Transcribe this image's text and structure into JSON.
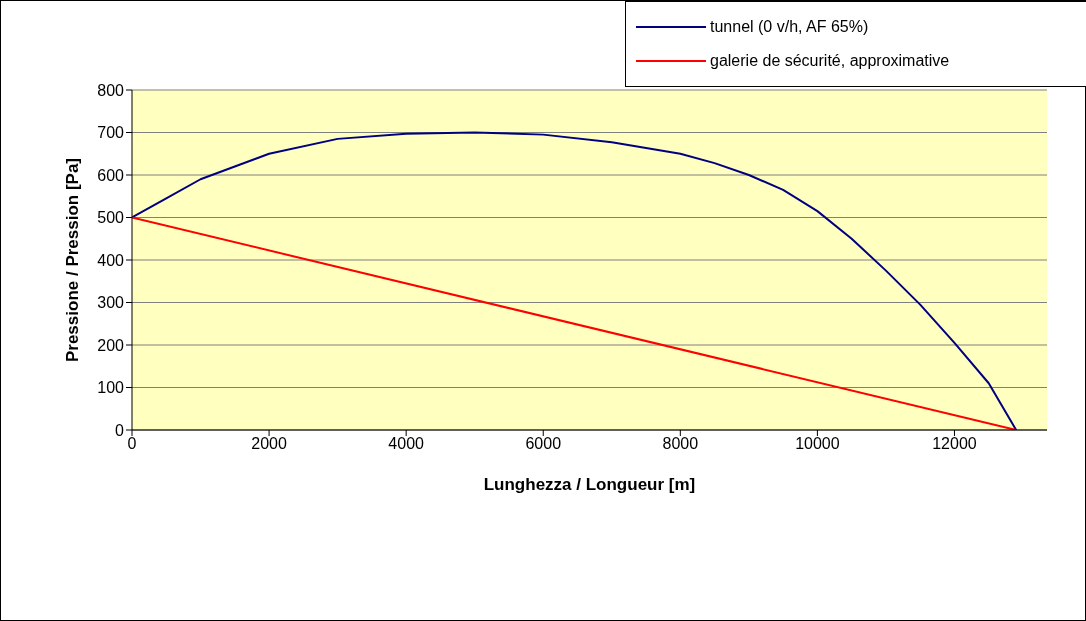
{
  "chart_data": {
    "type": "line",
    "xlabel": "Lunghezza / Longueur [m]",
    "ylabel": "Pressione / Pression [Pa]",
    "xlim": [
      0,
      13350
    ],
    "xticks": [
      0,
      2000,
      4000,
      6000,
      8000,
      10000,
      12000
    ],
    "ylim": [
      0,
      800
    ],
    "yticks": [
      0,
      100,
      200,
      300,
      400,
      500,
      600,
      700,
      800
    ],
    "grid": "y",
    "legend": "top right",
    "marker": "none",
    "line_style": "solid",
    "series": [
      {
        "name": "tunnel (0 v/h, AF 65%)",
        "color": "#000080",
        "x": [
          0,
          500,
          1000,
          1500,
          2000,
          3000,
          4000,
          5000,
          6000,
          7000,
          8000,
          8500,
          9000,
          9500,
          10000,
          10500,
          11000,
          11500,
          12000,
          12500,
          12900
        ],
        "values": [
          500,
          545,
          590,
          620,
          650,
          685,
          697,
          700,
          695,
          677,
          650,
          628,
          600,
          565,
          515,
          450,
          375,
          295,
          205,
          110,
          0
        ]
      },
      {
        "name": "galerie de sécurité, approximative",
        "color": "#ff0000",
        "x": [
          0,
          12900
        ],
        "values": [
          500,
          0
        ]
      }
    ]
  }
}
